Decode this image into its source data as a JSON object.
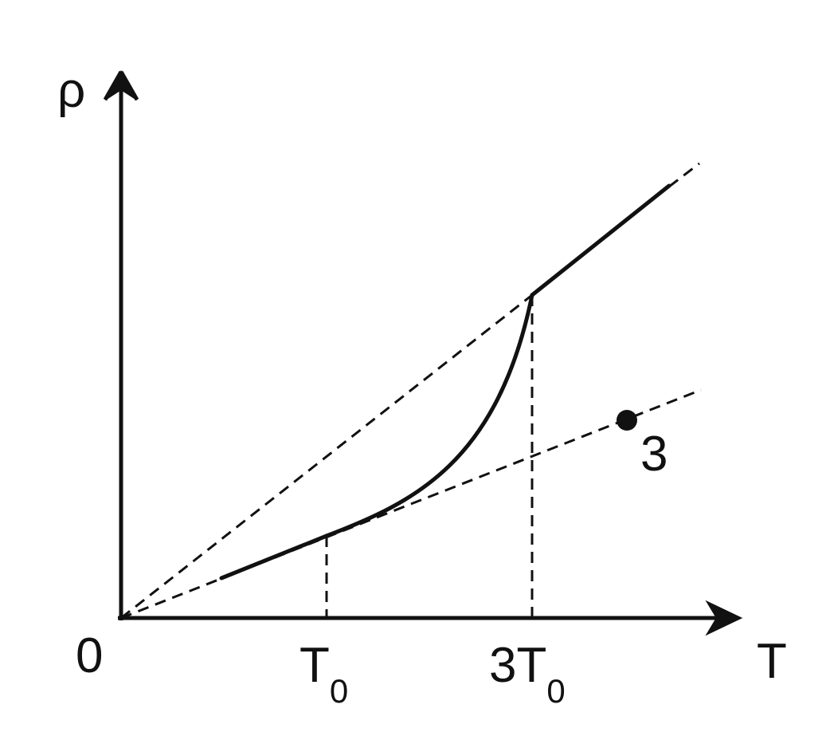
{
  "axes": {
    "y_label": "ρ",
    "x_label": "T",
    "origin": "0"
  },
  "ticks": {
    "t0": {
      "main": "T",
      "sub": "0"
    },
    "three_t0": {
      "main": "3T",
      "sub": "0"
    }
  },
  "point": {
    "label": "3"
  }
}
